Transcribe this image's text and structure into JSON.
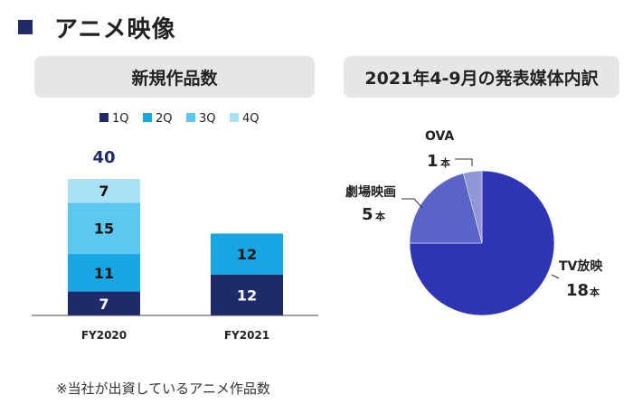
{
  "page": {
    "title": "アニメ映像",
    "footnote": "※当社が出資しているアニメ作品数"
  },
  "chart_data": [
    {
      "type": "bar",
      "stacked": true,
      "title": "新規作品数",
      "categories": [
        "FY2020",
        "FY2021"
      ],
      "series": [
        {
          "name": "1Q",
          "values": [
            7,
            12
          ],
          "color": "#1f2a6b"
        },
        {
          "name": "2Q",
          "values": [
            11,
            12
          ],
          "color": "#17a6e3"
        },
        {
          "name": "3Q",
          "values": [
            15,
            0
          ],
          "color": "#5cc7ef"
        },
        {
          "name": "4Q",
          "values": [
            7,
            0
          ],
          "color": "#a9e2f7"
        }
      ],
      "totals": [
        {
          "label": "40",
          "category": "FY2020"
        }
      ],
      "total_color": "#1f2a6b",
      "legend_position": "top",
      "ylim": [
        0,
        40
      ]
    },
    {
      "type": "pie",
      "title": "2021年4-9月の発表媒体内訳",
      "slices": [
        {
          "name": "TV放映",
          "value": 18,
          "count": "18",
          "unit": "本",
          "color": "#2e35b4"
        },
        {
          "name": "劇場映画",
          "value": 5,
          "count": "5",
          "unit": "本",
          "color": "#5a63c6"
        },
        {
          "name": "OVA",
          "value": 1,
          "count": "1",
          "unit": "本",
          "color": "#8f97d8"
        }
      ]
    }
  ]
}
